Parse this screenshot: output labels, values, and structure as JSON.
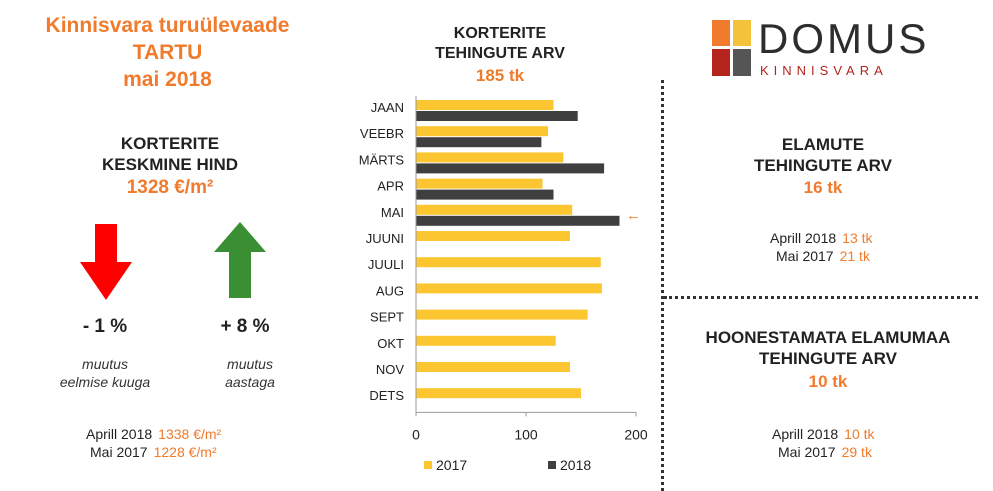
{
  "header": {
    "title_line1": "Kinnisvara turuülevaade",
    "title_line2": "TARTU",
    "title_line3": "mai 2018"
  },
  "price": {
    "heading_line1": "KORTERITE",
    "heading_line2": "KESKMINE HIND",
    "value": "1328 €/m²",
    "monthly_change": "- 1 %",
    "monthly_note_line1": "muutus",
    "monthly_note_line2": "eelmise kuuga",
    "yearly_change": "+ 8 %",
    "yearly_note_line1": "muutus",
    "yearly_note_line2": "aastaga",
    "ref1_label": "Aprill 2018",
    "ref1_value": "1338 €/m²",
    "ref2_label": "Mai 2017",
    "ref2_value": "1228 €/m²",
    "down_color": "#ff0000",
    "up_color": "#3a8f32"
  },
  "apartments": {
    "heading_line1": "KORTERITE",
    "heading_line2": "TEHINGUTE ARV",
    "total": "185 tk"
  },
  "houses": {
    "heading_line1": "ELAMUTE",
    "heading_line2": "TEHINGUTE ARV",
    "value": "16 tk",
    "ref1_label": "Aprill 2018",
    "ref1_value": "13 tk",
    "ref2_label": "Mai 2017",
    "ref2_value": "21 tk"
  },
  "land": {
    "heading_line1": "HOONESTAMATA ELAMUMAA",
    "heading_line2": "TEHINGUTE ARV",
    "value": "10 tk",
    "ref1_label": "Aprill 2018",
    "ref1_value": "10 tk",
    "ref2_label": "Mai 2017",
    "ref2_value": "29 tk"
  },
  "logo": {
    "name": "DOMUS",
    "sub": "KINNISVARA",
    "colors": [
      "#f07b2c",
      "#f5c33b",
      "#b5231d",
      "#555555"
    ]
  },
  "chart_data": {
    "type": "bar",
    "orientation": "horizontal",
    "categories": [
      "JAAN",
      "VEEBR",
      "MÄRTS",
      "APR",
      "MAI",
      "JUUNI",
      "JUULI",
      "AUG",
      "SEPT",
      "OKT",
      "NOV",
      "DETS"
    ],
    "series": [
      {
        "name": "2017",
        "color": "#fcc631",
        "values": [
          125,
          120,
          134,
          115,
          142,
          140,
          168,
          169,
          156,
          127,
          140,
          150
        ]
      },
      {
        "name": "2018",
        "color": "#3f3f3f",
        "values": [
          147,
          114,
          171,
          125,
          185,
          null,
          null,
          null,
          null,
          null,
          null,
          null
        ]
      }
    ],
    "xlim": [
      0,
      200
    ],
    "xticks": [
      0,
      100,
      200
    ],
    "legend_position": "bottom",
    "highlight_category": "MAI",
    "highlight_marker": "←",
    "highlight_color": "#f07b2c",
    "grid": false
  }
}
